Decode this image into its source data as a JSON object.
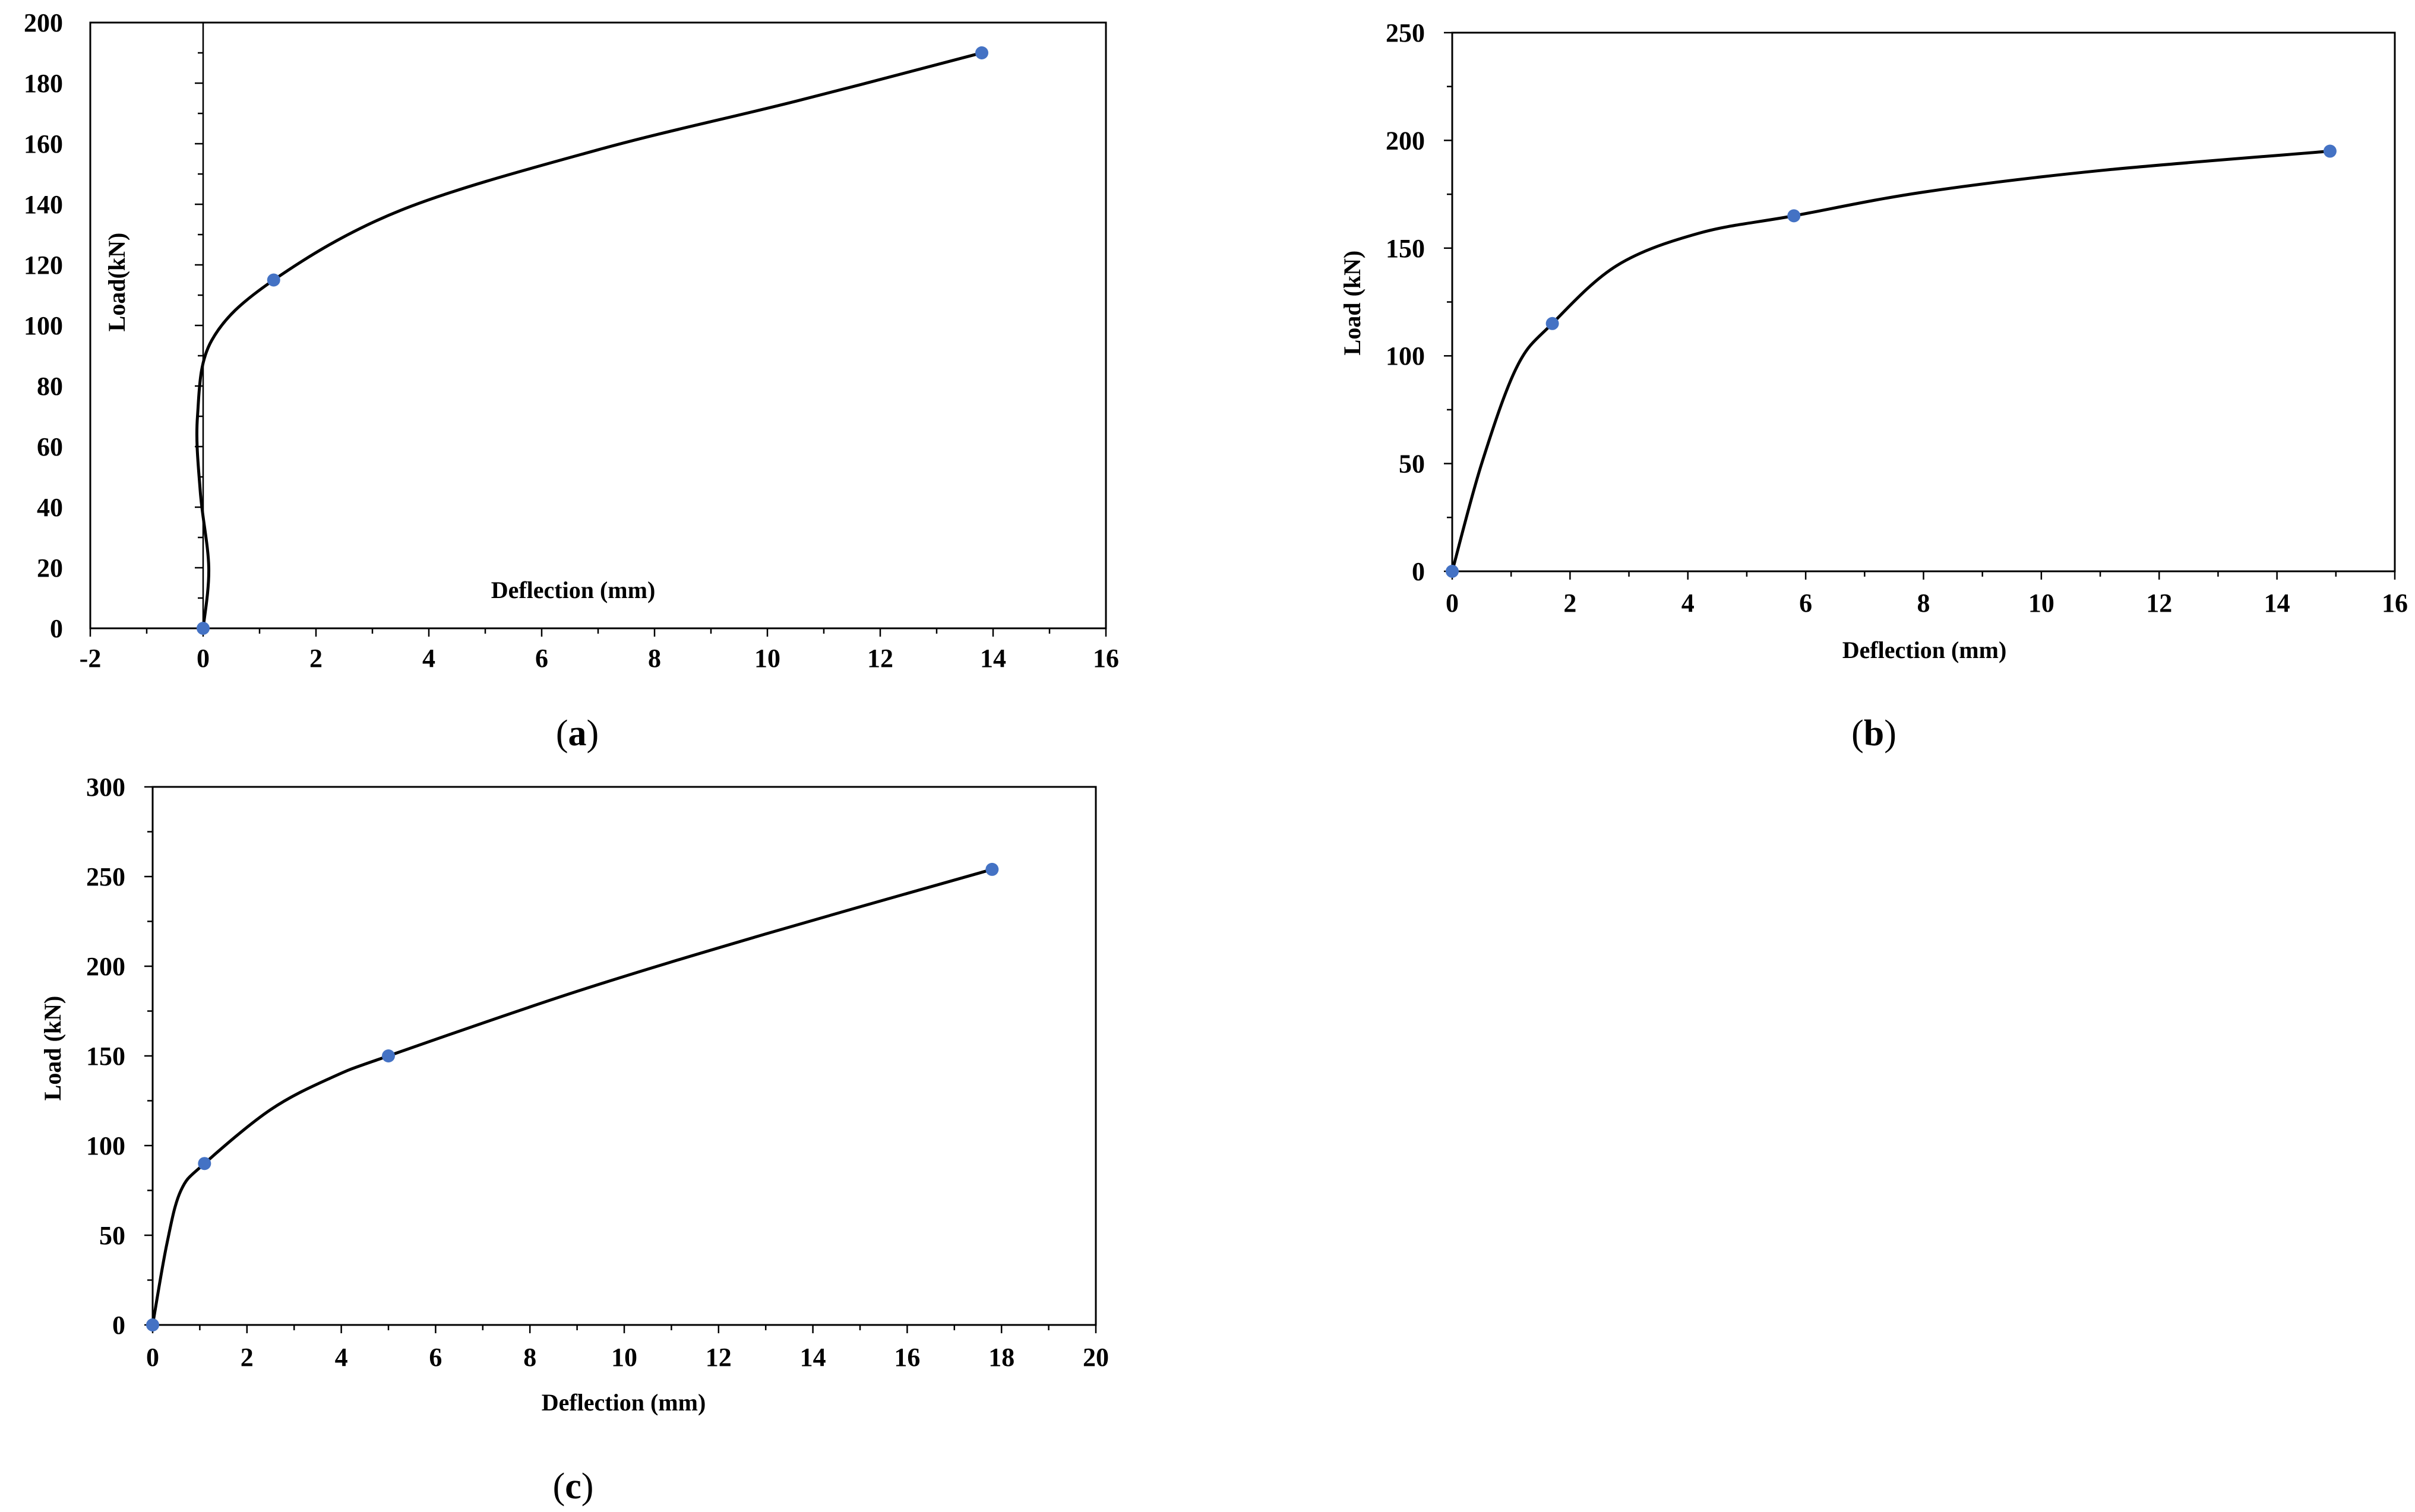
{
  "chart_data": [
    {
      "panel_label": "a",
      "type": "line",
      "xlabel": "Deflection (mm)",
      "ylabel": "Load(kN)",
      "xlim": [
        -2,
        16
      ],
      "ylim": [
        0,
        200
      ],
      "xticks": [
        -2,
        0,
        2,
        4,
        6,
        8,
        10,
        12,
        14,
        16
      ],
      "yticks": [
        0,
        20,
        40,
        60,
        80,
        100,
        120,
        140,
        160,
        180,
        200
      ],
      "xminor": 1,
      "yminor": 10,
      "grid": false,
      "legend": "none",
      "line_color": "#000000",
      "marker_color": "#4472C4",
      "series": [
        {
          "points": [
            {
              "x": 0.0,
              "y": 0
            },
            {
              "x": 1.25,
              "y": 115
            },
            {
              "x": 13.8,
              "y": 190
            }
          ],
          "curve": [
            [
              0.0,
              0
            ],
            [
              0.1,
              20
            ],
            [
              -0.05,
              45
            ],
            [
              -0.1,
              70
            ],
            [
              0.15,
              95
            ],
            [
              1.25,
              115
            ],
            [
              3.5,
              138
            ],
            [
              7.0,
              158
            ],
            [
              10.5,
              174
            ],
            [
              13.8,
              190
            ]
          ]
        }
      ]
    },
    {
      "panel_label": "b",
      "type": "line",
      "xlabel": "Deflection (mm)",
      "ylabel": "Load (kN)",
      "xlim": [
        0,
        16
      ],
      "ylim": [
        0,
        250
      ],
      "xticks": [
        0,
        2,
        4,
        6,
        8,
        10,
        12,
        14,
        16
      ],
      "yticks": [
        0,
        50,
        100,
        150,
        200,
        250
      ],
      "xminor": 1,
      "yminor": 25,
      "grid": false,
      "legend": "none",
      "line_color": "#000000",
      "marker_color": "#4472C4",
      "series": [
        {
          "points": [
            {
              "x": 0.0,
              "y": 0
            },
            {
              "x": 1.7,
              "y": 115
            },
            {
              "x": 5.8,
              "y": 165
            },
            {
              "x": 14.9,
              "y": 195
            }
          ],
          "curve": [
            [
              0.0,
              0
            ],
            [
              0.5,
              50
            ],
            [
              1.1,
              95
            ],
            [
              1.7,
              115
            ],
            [
              2.8,
              142
            ],
            [
              4.2,
              157
            ],
            [
              5.8,
              165
            ],
            [
              8.0,
              176
            ],
            [
              11.0,
              186
            ],
            [
              14.9,
              195
            ]
          ]
        }
      ]
    },
    {
      "panel_label": "c",
      "type": "line",
      "xlabel": "Deflection (mm)",
      "ylabel": "Load (kN)",
      "xlim": [
        0,
        20
      ],
      "ylim": [
        0,
        300
      ],
      "xticks": [
        0,
        2,
        4,
        6,
        8,
        10,
        12,
        14,
        16,
        18,
        20
      ],
      "yticks": [
        0,
        50,
        100,
        150,
        200,
        250,
        300
      ],
      "xminor": 1,
      "yminor": 25,
      "grid": false,
      "legend": "none",
      "line_color": "#000000",
      "marker_color": "#4472C4",
      "series": [
        {
          "points": [
            {
              "x": 0.0,
              "y": 0
            },
            {
              "x": 1.1,
              "y": 90
            },
            {
              "x": 5.0,
              "y": 150
            },
            {
              "x": 17.8,
              "y": 254
            }
          ],
          "curve": [
            [
              0.0,
              0
            ],
            [
              0.3,
              45
            ],
            [
              0.6,
              75
            ],
            [
              1.1,
              90
            ],
            [
              2.5,
              120
            ],
            [
              3.8,
              138
            ],
            [
              5.0,
              150
            ],
            [
              9.0,
              186
            ],
            [
              13.0,
              218
            ],
            [
              17.8,
              254
            ]
          ]
        }
      ]
    }
  ]
}
